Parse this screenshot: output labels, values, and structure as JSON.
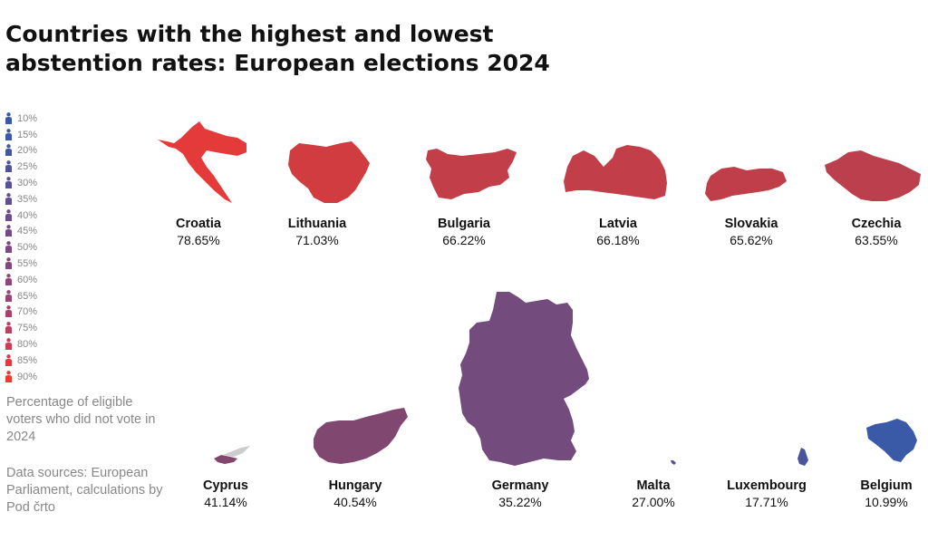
{
  "title_line1": "Countries with the highest and lowest",
  "title_line2": "abstention rates: European elections 2024",
  "legend": {
    "items": [
      "10%",
      "15%",
      "20%",
      "25%",
      "30%",
      "35%",
      "40%",
      "45%",
      "50%",
      "55%",
      "60%",
      "65%",
      "70%",
      "75%",
      "80%",
      "85%",
      "90%"
    ],
    "colors": [
      "#3a5aa8",
      "#3f57a4",
      "#47559f",
      "#50539a",
      "#595195",
      "#624f90",
      "#6b4d8b",
      "#744b86",
      "#7d4981",
      "#86477c",
      "#8f4577",
      "#984372",
      "#a9416a",
      "#bb3f60",
      "#cd3c54",
      "#e03a44",
      "#f03a2e"
    ]
  },
  "notes": {
    "definition": "Percentage of eligible voters who did not vote in 2024",
    "sources": "Data sources: European Parliament, calculations by Pod črto"
  },
  "chart_data": {
    "type": "table",
    "title": "Countries with the highest and lowest abstention rates: European elections 2024",
    "value_description": "Percentage of eligible voters who did not vote in 2024",
    "highest": [
      {
        "country": "Croatia",
        "value": 78.65,
        "label": "78.65%",
        "color": "#e53a3a"
      },
      {
        "country": "Lithuania",
        "value": 71.03,
        "label": "71.03%",
        "color": "#d13c40"
      },
      {
        "country": "Bulgaria",
        "value": 66.22,
        "label": "66.22%",
        "color": "#c23e48"
      },
      {
        "country": "Latvia",
        "value": 66.18,
        "label": "66.18%",
        "color": "#c23e48"
      },
      {
        "country": "Slovakia",
        "value": 65.62,
        "label": "65.62%",
        "color": "#bf3e4a"
      },
      {
        "country": "Czechia",
        "value": 63.55,
        "label": "63.55%",
        "color": "#bb3f4c"
      }
    ],
    "lowest": [
      {
        "country": "Cyprus",
        "value": 41.14,
        "label": "41.14%",
        "color": "#82476f"
      },
      {
        "country": "Hungary",
        "value": 40.54,
        "label": "40.54%",
        "color": "#804770"
      },
      {
        "country": "Germany",
        "value": 35.22,
        "label": "35.22%",
        "color": "#734b7c"
      },
      {
        "country": "Malta",
        "value": 27.0,
        "label": "27.00%",
        "color": "#5e5090"
      },
      {
        "country": "Luxembourg",
        "value": 17.71,
        "label": "17.71%",
        "color": "#4b559c"
      },
      {
        "country": "Belgium",
        "value": 10.99,
        "label": "10.99%",
        "color": "#3a5aa8"
      }
    ],
    "occupied_north_cyprus_color": "#cccccc"
  }
}
